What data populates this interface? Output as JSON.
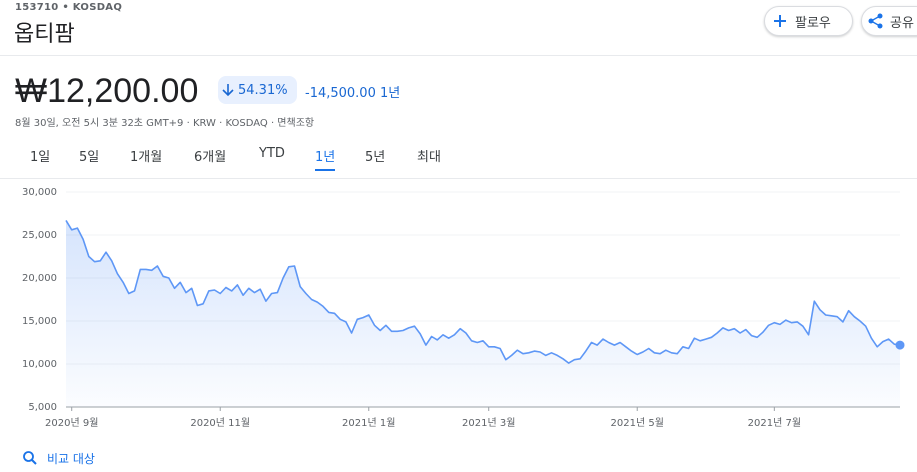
{
  "header": {
    "ticker": "153710 • KOSDAQ",
    "name": "옵티팜",
    "follow": "팔로우",
    "share": "공유"
  },
  "price": {
    "value": "₩12,200.00",
    "change_pct": "54.31%",
    "change": "-14,500.00",
    "period": "1년",
    "timestamp": "8월 30일, 오전 5시 3분 32초 GMT+9 · KRW · KOSDAQ · 면책조항"
  },
  "tabs": {
    "items": [
      "1일",
      "5일",
      "1개월",
      "6개월",
      "YTD",
      "1년",
      "5년",
      "최대"
    ],
    "selected": 5
  },
  "chart_data": {
    "type": "line",
    "series": [
      {
        "color": "#5e97f6",
        "values": [
          26700,
          25600,
          25800,
          24500,
          22500,
          21900,
          22000,
          23000,
          22000,
          20500,
          19500,
          18200,
          18500,
          21000,
          21000,
          20900,
          21400,
          20200,
          20000,
          18800,
          19500,
          18300,
          18800,
          16800,
          17000,
          18500,
          18600,
          18200,
          18900,
          18500,
          19200,
          18000,
          18800,
          18300,
          18700,
          17300,
          18200,
          18300,
          20000,
          21300,
          21400,
          19000,
          18200,
          17500,
          17200,
          16700,
          16000,
          15900,
          15200,
          14900,
          13600,
          15200,
          15400,
          15700,
          14500,
          13900,
          14500,
          13800,
          13800,
          13900,
          14200,
          14400,
          13500,
          12200,
          13200,
          12800,
          13400,
          13000,
          13400,
          14100,
          13600,
          12700,
          12500,
          12700,
          12000,
          12000,
          11800,
          10500,
          11000,
          11600,
          11200,
          11300,
          11500,
          11400,
          11000,
          11300,
          11000,
          10600,
          10100,
          10500,
          10600,
          11500,
          12500,
          12200,
          12900,
          12500,
          12200,
          12500,
          12000,
          11500,
          11100,
          11400,
          11800,
          11300,
          11200,
          11600,
          11300,
          11200,
          12000,
          11800,
          13000,
          12700,
          12900,
          13100,
          13600,
          14200,
          13900,
          14100,
          13600,
          14000,
          13300,
          13100,
          13700,
          14500,
          14800,
          14600,
          15100,
          14800,
          14900,
          14400,
          13400,
          17300,
          16300,
          15700,
          15600,
          15500,
          14900,
          16200,
          15500,
          15000,
          14400,
          13000,
          12000,
          12600,
          12900,
          12300,
          12200
        ]
      }
    ],
    "xlim": [
      0,
      146
    ],
    "xticks": [
      {
        "value": 1,
        "label": "2020년 9월"
      },
      {
        "value": 27,
        "label": "2020년 11월"
      },
      {
        "value": 53,
        "label": "2021년 1월"
      },
      {
        "value": 74,
        "label": "2021년 3월"
      },
      {
        "value": 100,
        "label": "2021년 5월"
      },
      {
        "value": 124,
        "label": "2021년 7월"
      }
    ],
    "ylim": [
      5000,
      30000
    ],
    "yticks": [
      {
        "value": 5000,
        "label": "5,000"
      },
      {
        "value": 10000,
        "label": "10,000"
      },
      {
        "value": 15000,
        "label": "15,000"
      },
      {
        "value": 20000,
        "label": "20,000"
      },
      {
        "value": 25000,
        "label": "25,000"
      },
      {
        "value": 30000,
        "label": "30,000"
      }
    ],
    "grid": true
  },
  "compare": "비교 대상"
}
